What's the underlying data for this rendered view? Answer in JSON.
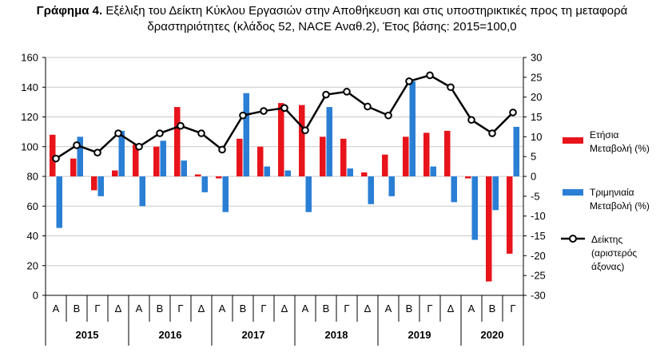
{
  "title": {
    "bold": "Γράφημα 4.",
    "line1": "Εξέλιξη του Δείκτη Κύκλου Εργασιών στην Αποθήκευση και στις υποστηρικτικές προς τη μεταφορά",
    "line2": "δραστηριότητες (κλάδος 52, NACE Αναθ.2), Έτος βάσης: 2015=100,0"
  },
  "legend": {
    "annual": [
      "Ετήσια",
      "Μεταβολή (%)"
    ],
    "quarterly": [
      "Τριμηνιαία",
      "Μεταβολή (%)"
    ],
    "index": [
      "Δείκτης",
      "(αριστερός",
      "άξονας)"
    ]
  },
  "colors": {
    "annual": "#e8141b",
    "quarterly": "#2a7fd4",
    "index": "#000000",
    "grid": "#c8c8c8"
  },
  "chart_data": {
    "type": "bar",
    "quarters": [
      "Α",
      "Β",
      "Γ",
      "Δ",
      "Α",
      "Β",
      "Γ",
      "Δ",
      "Α",
      "Β",
      "Γ",
      "Δ",
      "Α",
      "Β",
      "Γ",
      "Δ",
      "Α",
      "Β",
      "Γ",
      "Δ",
      "Α",
      "Β",
      "Γ"
    ],
    "years": [
      {
        "label": "2015",
        "span": 4
      },
      {
        "label": "2016",
        "span": 4
      },
      {
        "label": "2017",
        "span": 4
      },
      {
        "label": "2018",
        "span": 4
      },
      {
        "label": "2019",
        "span": 4
      },
      {
        "label": "2020",
        "span": 3
      }
    ],
    "left_axis": {
      "min": 0,
      "max": 160,
      "step": 20
    },
    "right_axis": {
      "min": -30,
      "max": 30,
      "step": 5
    },
    "series": [
      {
        "name": "Ετήσια Μεταβολή (%)",
        "axis": "right",
        "kind": "bar",
        "values": [
          10.5,
          4.5,
          -3.5,
          1.5,
          8,
          7.5,
          17.5,
          0.5,
          -0.5,
          9.5,
          7.5,
          18.5,
          18,
          10,
          9.5,
          1,
          5.5,
          10,
          11,
          11.5,
          -0.5,
          -26.5,
          -19.5
        ]
      },
      {
        "name": "Τριμηνιαία Μεταβολή (%)",
        "axis": "right",
        "kind": "bar",
        "values": [
          -13,
          10,
          -5,
          11.5,
          -7.5,
          9,
          4,
          -4,
          -9,
          21,
          2.5,
          1.5,
          -9,
          17.5,
          2,
          -7,
          -5,
          24,
          2.5,
          -6.5,
          -16,
          -8.5,
          12.5
        ]
      },
      {
        "name": "Δείκτης (αριστερός άξονας)",
        "axis": "left",
        "kind": "line",
        "values": [
          92,
          101,
          96,
          109,
          100,
          109,
          114,
          109,
          98,
          121,
          124,
          126,
          111,
          135,
          137,
          127,
          121,
          144,
          148,
          140,
          118,
          109,
          123
        ]
      }
    ]
  }
}
